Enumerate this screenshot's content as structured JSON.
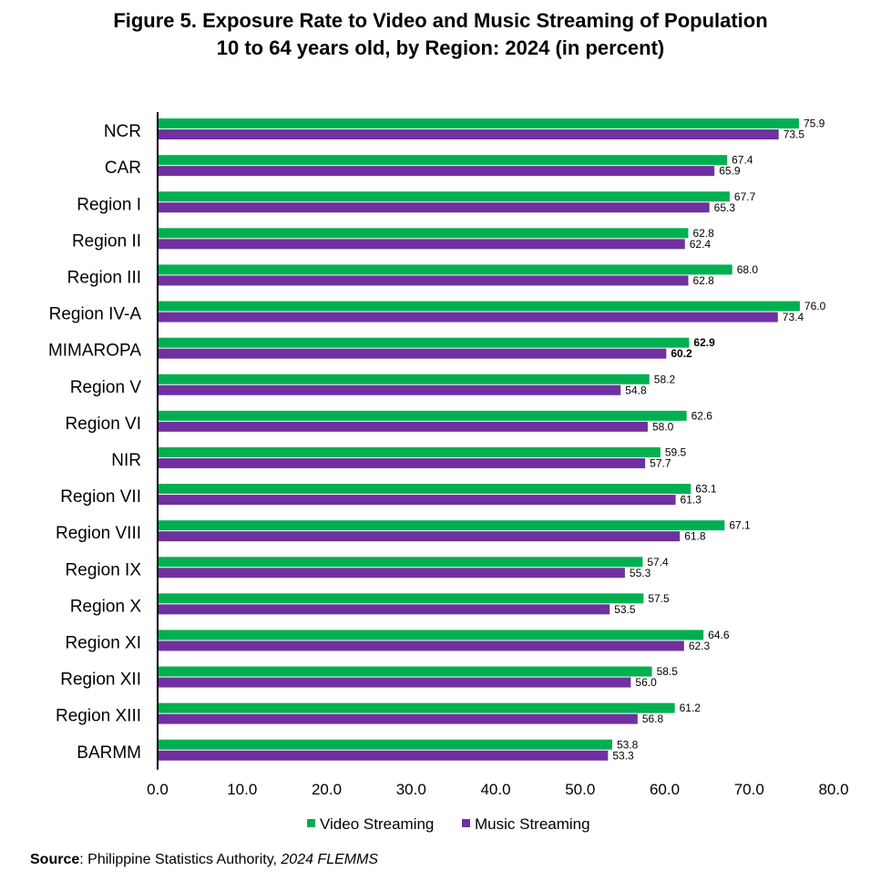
{
  "chart_data": {
    "type": "bar",
    "orientation": "horizontal",
    "title_lines": [
      "Figure 5. Exposure Rate to Video and Music Streaming of Population",
      "10 to 64 years old, by Region: 2024 (in percent)"
    ],
    "categories": [
      "NCR",
      "CAR",
      "Region I",
      "Region II",
      "Region III",
      "Region IV-A",
      "MIMAROPA",
      "Region V",
      "Region VI",
      "NIR",
      "Region VII",
      "Region VIII",
      "Region IX",
      "Region X",
      "Region XI",
      "Region XII",
      "Region XIII",
      "BARMM"
    ],
    "series": [
      {
        "name": "Video Streaming",
        "color": "#00b050",
        "values": [
          75.9,
          67.4,
          67.7,
          62.8,
          68.0,
          76.0,
          62.9,
          58.2,
          62.6,
          59.5,
          63.1,
          67.1,
          57.4,
          57.5,
          64.6,
          58.5,
          61.2,
          53.8
        ],
        "labels": [
          "75.9",
          "67.4",
          "67.7",
          "62.8",
          "68.0",
          "76.0",
          "62.9",
          "58.2",
          "62.6",
          "59.5",
          "63.1",
          "67.1",
          "57.4",
          "57.5",
          "64.6",
          "58.5",
          "61.2",
          "53.8"
        ]
      },
      {
        "name": "Music Streaming",
        "color": "#7030a0",
        "values": [
          73.5,
          65.9,
          65.3,
          62.4,
          62.8,
          73.4,
          60.2,
          54.8,
          58.0,
          57.7,
          61.3,
          61.8,
          55.3,
          53.5,
          62.3,
          56.0,
          56.8,
          53.3
        ],
        "labels": [
          "73.5",
          "65.9",
          "65.3",
          "62.4",
          "62.8",
          "73.4",
          "60.2",
          "54.8",
          "58.0",
          "57.7",
          "61.3",
          "61.8",
          "55.3",
          "53.5",
          "62.3",
          "56.0",
          "56.8",
          "53.3"
        ]
      }
    ],
    "highlight_category": "MIMAROPA",
    "xlim": [
      0,
      80
    ],
    "xticks": [
      "0.0",
      "10.0",
      "20.0",
      "30.0",
      "40.0",
      "50.0",
      "60.0",
      "70.0",
      "80.0"
    ],
    "grid": false,
    "legend_position": "bottom"
  },
  "source": {
    "label": "Source",
    "text": ": Philippine Statistics Authority, ",
    "publication": "2024 FLEMMS"
  }
}
